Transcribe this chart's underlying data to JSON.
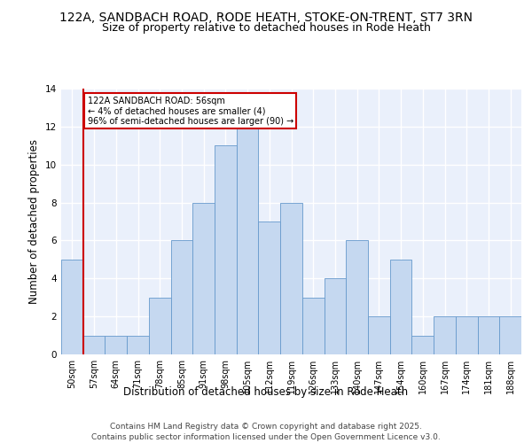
{
  "title1": "122A, SANDBACH ROAD, RODE HEATH, STOKE-ON-TRENT, ST7 3RN",
  "title2": "Size of property relative to detached houses in Rode Heath",
  "xlabel": "Distribution of detached houses by size in Rode Heath",
  "ylabel": "Number of detached properties",
  "footer": "Contains HM Land Registry data © Crown copyright and database right 2025.\nContains public sector information licensed under the Open Government Licence v3.0.",
  "categories": [
    "50sqm",
    "57sqm",
    "64sqm",
    "71sqm",
    "78sqm",
    "85sqm",
    "91sqm",
    "98sqm",
    "105sqm",
    "112sqm",
    "119sqm",
    "126sqm",
    "133sqm",
    "140sqm",
    "147sqm",
    "154sqm",
    "160sqm",
    "167sqm",
    "174sqm",
    "181sqm",
    "188sqm"
  ],
  "values": [
    5,
    1,
    1,
    1,
    3,
    6,
    8,
    11,
    12,
    7,
    8,
    3,
    4,
    6,
    2,
    5,
    1,
    2,
    2,
    2,
    2
  ],
  "bar_color": "#c5d8f0",
  "bar_edge_color": "#6699cc",
  "property_line_color": "#cc0000",
  "annotation_text": "122A SANDBACH ROAD: 56sqm\n← 4% of detached houses are smaller (4)\n96% of semi-detached houses are larger (90) →",
  "annotation_box_color": "#cc0000",
  "ylim": [
    0,
    14
  ],
  "yticks": [
    0,
    2,
    4,
    6,
    8,
    10,
    12,
    14
  ],
  "background_color": "#eaf0fb",
  "grid_color": "#ffffff",
  "title_fontsize": 10,
  "subtitle_fontsize": 9,
  "axis_label_fontsize": 8.5,
  "tick_fontsize": 7,
  "footer_fontsize": 6.5
}
